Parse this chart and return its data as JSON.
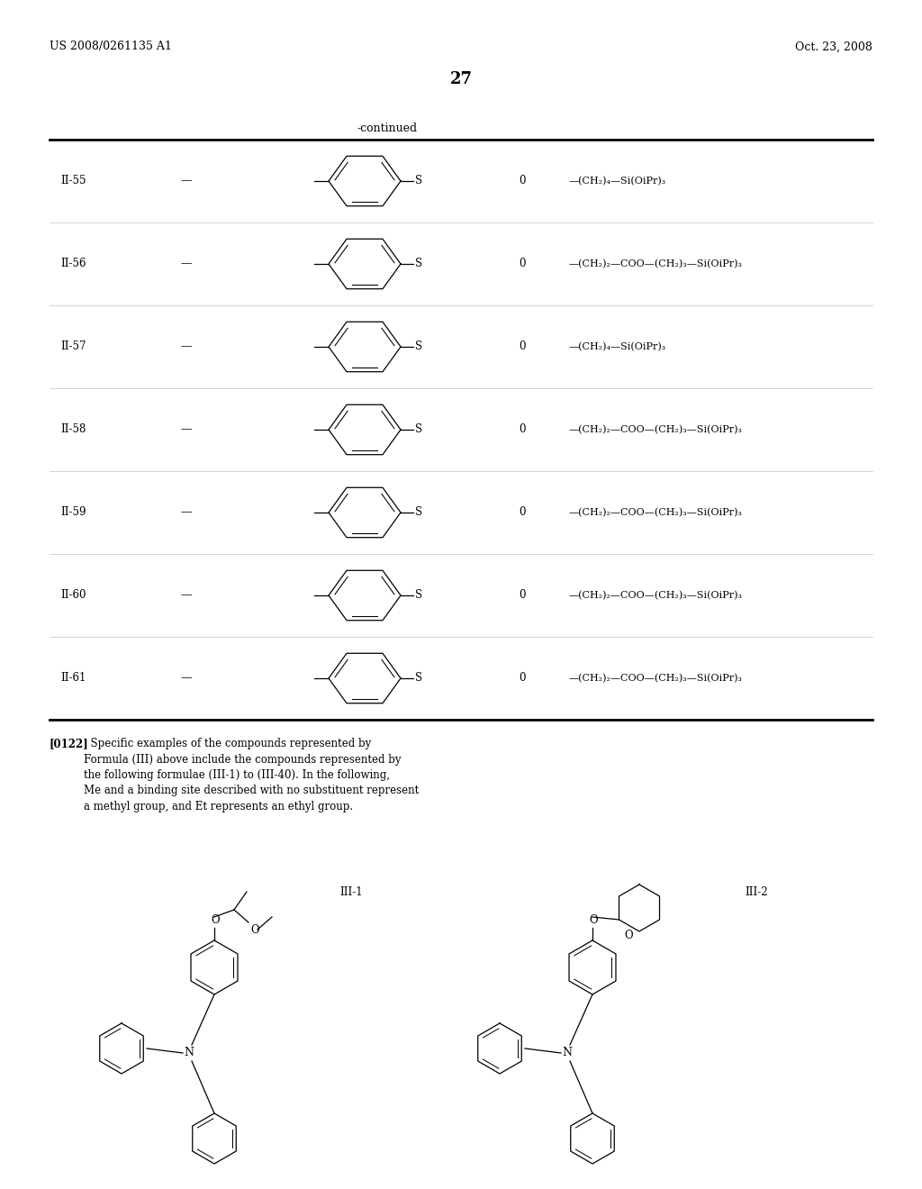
{
  "background_color": "#ffffff",
  "header_left": "US 2008/0261135 A1",
  "header_right": "Oct. 23, 2008",
  "page_num": "27",
  "continued": "-continued",
  "rows": [
    {
      "id": "II-55",
      "formula": "—(CH₂)₄—Si(OiPr)₃"
    },
    {
      "id": "II-56",
      "formula": "—(CH₂)₂—COO—(CH₂)₃—Si(OiPr)₃"
    },
    {
      "id": "II-57",
      "formula": "—(CH₂)₄—Si(OiPr)₃"
    },
    {
      "id": "II-58",
      "formula": "—(CH₂)₂—COO—(CH₂)₃—Si(OiPr)₃"
    },
    {
      "id": "II-59",
      "formula": "—(CH₂)₂—COO—(CH₂)₃—Si(OiPr)₃"
    },
    {
      "id": "II-60",
      "formula": "—(CH₂)₂—COO—(CH₂)₃—Si(OiPr)₃"
    },
    {
      "id": "II-61",
      "formula": "—(CH₂)₂—COO—(CH₂)₃—Si(OiPr)₃"
    }
  ],
  "para_bold": "[0122]",
  "para_body": "  Specific examples of the compounds represented by\nFormula (III) above include the compounds represented by\nthe following formulae (III-1) to (III-40). In the following,\nMe and a binding site described with no substituent represent\na methyl group, and Et represents an ethyl group.",
  "label1": "III-1",
  "label2": "III-2",
  "ML": 55,
  "MR": 969,
  "PW": 1024,
  "PH": 1320
}
